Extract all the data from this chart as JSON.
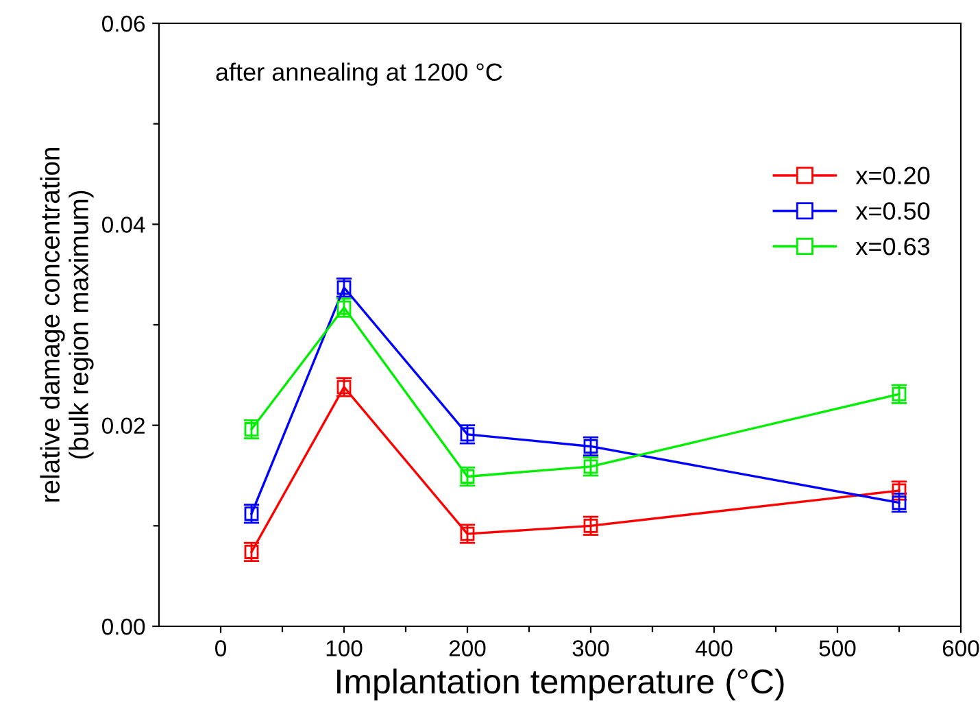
{
  "chart_data": {
    "type": "line",
    "xlabel": "Implantation temperature (°C)",
    "ylabel": "relative damage concentration\n(bulk region maximum)",
    "annotations": [
      "after annealing at 1200 °C"
    ],
    "x": [
      25,
      100,
      200,
      300,
      550
    ],
    "series": [
      {
        "name": "x=0.20",
        "color": "#ff0000",
        "values": [
          0.0074,
          0.0238,
          0.0092,
          0.01,
          0.0135
        ],
        "errors": [
          0.0009,
          0.0009,
          0.0009,
          0.0009,
          0.0009
        ]
      },
      {
        "name": "x=0.50",
        "color": "#0000ff",
        "values": [
          0.0112,
          0.0337,
          0.0191,
          0.0179,
          0.0123
        ],
        "errors": [
          0.0009,
          0.0009,
          0.0009,
          0.0009,
          0.0009
        ]
      },
      {
        "name": "x=0.63",
        "color": "#00ee00",
        "values": [
          0.0196,
          0.0317,
          0.0149,
          0.0159,
          0.0231
        ],
        "errors": [
          0.0009,
          0.0009,
          0.0009,
          0.0009,
          0.0009
        ]
      }
    ],
    "xlim": [
      -50,
      600
    ],
    "xticks": [
      0,
      {
        "value": 50,
        "label": null
      },
      100,
      {
        "value": 150,
        "label": null
      },
      200,
      {
        "value": 250,
        "label": null
      },
      300,
      {
        "value": 350,
        "label": null
      },
      400,
      {
        "value": 450,
        "label": null
      },
      500,
      {
        "value": 550,
        "label": null
      },
      600
    ],
    "ylim": [
      0,
      0.06
    ],
    "yticks": [
      "0.00",
      {
        "value": 0.01,
        "label": null
      },
      {
        "value": 0.02,
        "label": "0.02"
      },
      {
        "value": 0.03,
        "label": null
      },
      {
        "value": 0.04,
        "label": "0.04"
      },
      {
        "value": 0.05,
        "label": null
      },
      {
        "value": 0.06,
        "label": "0.06"
      }
    ],
    "marker": "square",
    "line_style": "solid",
    "legend": "top right",
    "grid": false
  }
}
